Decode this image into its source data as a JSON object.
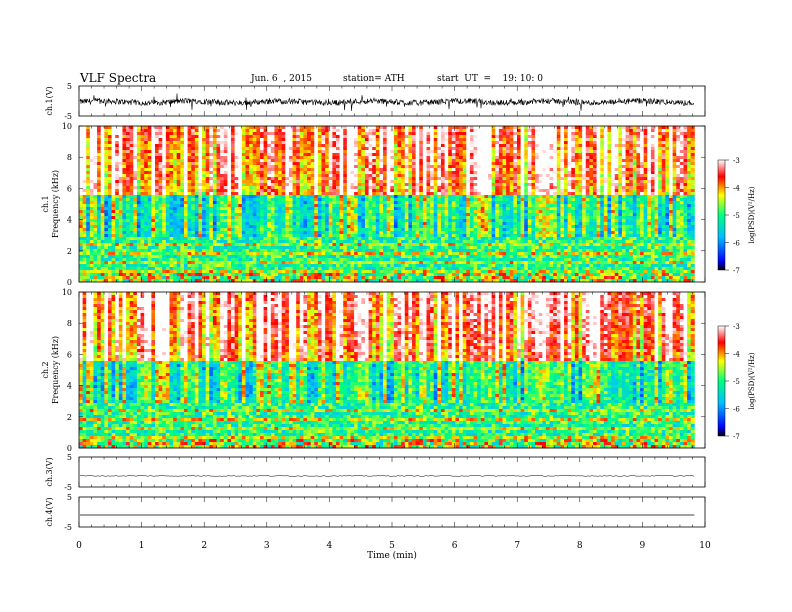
{
  "header": {
    "title": "VLF  Spectra",
    "date": "Jun. 6  , 2015",
    "station": "station= ATH",
    "start": "start  UT  =    19: 10: 0"
  },
  "chart_data": [
    {
      "type": "line",
      "panel": "ch1-waveform",
      "ylabel": "ch.1(V)",
      "yticks": [
        "5",
        "-5"
      ],
      "ylim": [
        -5,
        5
      ],
      "xlim": [
        0,
        10
      ],
      "data_end_min": 9.83,
      "description_values": {
        "baseline_V": -0.3,
        "noise_amplitude_V": 1.2
      }
    },
    {
      "type": "heatmap",
      "panel": "ch1-spectrogram",
      "ylabel": "ch.1\nFrequency  (kHz)",
      "ylabel_lines": [
        "ch.1",
        "Frequency  (kHz)"
      ],
      "yticks": [
        "0",
        "2",
        "4",
        "6",
        "8",
        "10"
      ],
      "ylim": [
        0,
        10
      ],
      "xlim": [
        0,
        10
      ],
      "colorbar": {
        "label": "log(PSD)(V²/Hz)",
        "ticks": [
          "-3",
          "-4",
          "-5",
          "-6",
          "-7"
        ],
        "range": [
          -7,
          -3
        ]
      }
    },
    {
      "type": "heatmap",
      "panel": "ch2-spectrogram",
      "ylabel_lines": [
        "ch.2",
        "Frequency  (kHz)"
      ],
      "yticks": [
        "0",
        "2",
        "4",
        "6",
        "8",
        "10"
      ],
      "ylim": [
        0,
        10
      ],
      "xlim": [
        0,
        10
      ],
      "colorbar": {
        "label": "log(PSD)(V²/Hz)",
        "ticks": [
          "-3",
          "-4",
          "-5",
          "-6",
          "-7"
        ],
        "range": [
          -7,
          -3
        ]
      }
    },
    {
      "type": "line",
      "panel": "ch3-waveform",
      "ylabel": "ch.3(V)",
      "yticks": [
        "5",
        "-5"
      ],
      "ylim": [
        -5,
        5
      ],
      "baseline_V": -1.3
    },
    {
      "type": "line",
      "panel": "ch4-waveform",
      "ylabel": "ch.4(V)",
      "yticks": [
        "5",
        "-5"
      ],
      "ylim": [
        -5,
        5
      ],
      "baseline_V": -1.0
    }
  ],
  "xaxis": {
    "label": "Time  (min)",
    "ticks": [
      "0",
      "1",
      "2",
      "3",
      "4",
      "5",
      "6",
      "7",
      "8",
      "9",
      "10"
    ]
  },
  "colors": {
    "scale": [
      "#000000",
      "#0000ff",
      "#00bfff",
      "#00ff80",
      "#ffff00",
      "#ff0000",
      "#ffffff"
    ]
  }
}
